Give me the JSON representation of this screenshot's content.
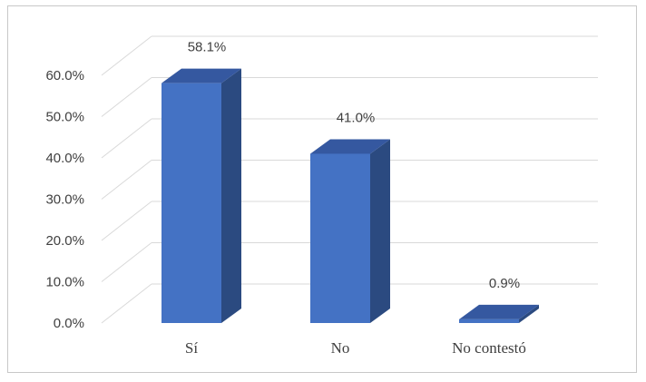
{
  "chart_data": {
    "type": "bar",
    "categories": [
      "Sí",
      "No",
      "No contestó"
    ],
    "values": [
      58.1,
      41.0,
      0.9
    ],
    "data_labels": [
      "58.1%",
      "41.0%",
      "0.9%"
    ],
    "title": "",
    "xlabel": "",
    "ylabel": "",
    "ylim": [
      0,
      60
    ],
    "y_ticks": [
      0,
      10,
      20,
      30,
      40,
      50,
      60
    ],
    "y_tick_labels": [
      "0.0%",
      "10.0%",
      "20.0%",
      "30.0%",
      "40.0%",
      "50.0%",
      "60.0%"
    ],
    "grid": true,
    "legend": "none",
    "style": "3d-column",
    "colors": {
      "front": "#4472c4",
      "side": "#2b4a80",
      "top": "#3558a0",
      "grid": "#d9d9d9"
    }
  }
}
